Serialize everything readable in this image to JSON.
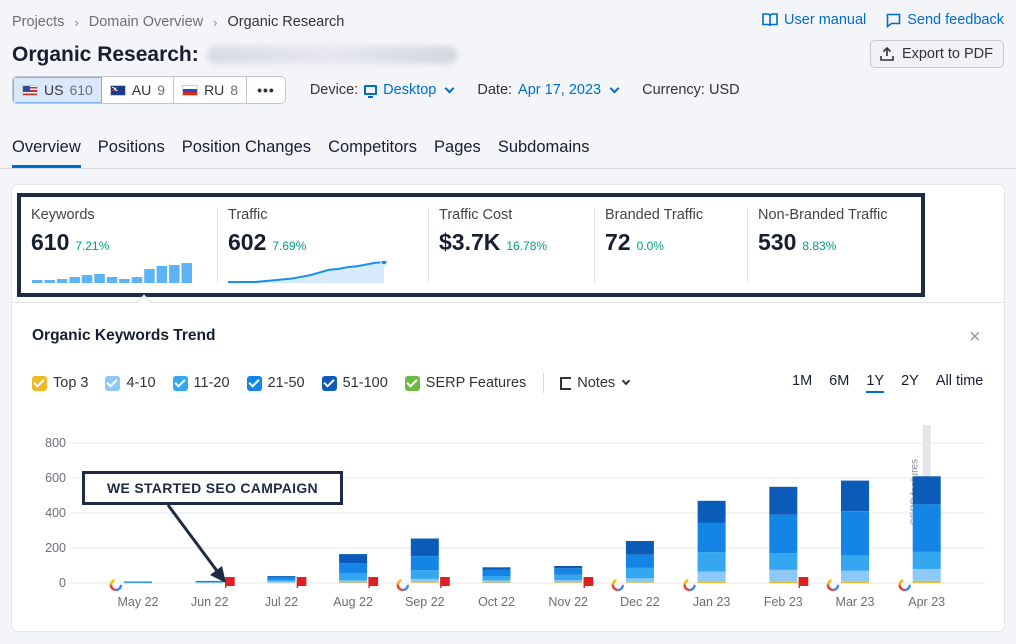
{
  "breadcrumb": {
    "items": [
      "Projects",
      "Domain Overview",
      "Organic Research"
    ]
  },
  "header_links": {
    "user_manual": "User manual",
    "send_feedback": "Send feedback"
  },
  "title": {
    "text": "Organic Research:"
  },
  "export": {
    "label": "Export to PDF"
  },
  "databases": [
    {
      "code": "US",
      "count": "610",
      "active": true
    },
    {
      "code": "AU",
      "count": "9",
      "active": false
    },
    {
      "code": "RU",
      "count": "8",
      "active": false
    }
  ],
  "more_label": "•••",
  "filters": {
    "device_label": "Device:",
    "device_value": "Desktop",
    "date_label": "Date:",
    "date_value": "Apr 17, 2023",
    "currency": "Currency: USD"
  },
  "tabs": [
    "Overview",
    "Positions",
    "Position Changes",
    "Competitors",
    "Pages",
    "Subdomains"
  ],
  "metrics": [
    {
      "label": "Keywords",
      "value": "610",
      "change": "7.21%"
    },
    {
      "label": "Traffic",
      "value": "602",
      "change": "7.69%"
    },
    {
      "label": "Traffic Cost",
      "value": "$3.7K",
      "change": "16.78%"
    },
    {
      "label": "Branded Traffic",
      "value": "72",
      "change": "0.0%"
    },
    {
      "label": "Non-Branded Traffic",
      "value": "530",
      "change": "8.83%"
    }
  ],
  "keywords_sparkline": [
    3,
    3,
    4,
    6,
    8,
    9,
    6,
    4,
    6,
    14,
    17,
    18,
    20
  ],
  "traffic_sparkline": [
    0,
    0,
    0,
    0,
    1,
    2,
    3,
    4,
    6,
    8,
    11,
    14,
    15,
    17,
    18,
    20,
    22,
    23
  ],
  "trend": {
    "title": "Organic Keywords Trend",
    "close": "×",
    "legend": [
      {
        "label": "Top 3",
        "color": "#f0b929"
      },
      {
        "label": "4-10",
        "color": "#8ec8f7"
      },
      {
        "label": "11-20",
        "color": "#35a7f0"
      },
      {
        "label": "21-50",
        "color": "#1484e6"
      },
      {
        "label": "51-100",
        "color": "#0b5cb8"
      },
      {
        "label": "SERP Features",
        "color": "#6bba44"
      }
    ],
    "notes": "Notes",
    "periods": [
      {
        "label": "1M",
        "active": false
      },
      {
        "label": "6M",
        "active": false
      },
      {
        "label": "1Y",
        "active": true
      },
      {
        "label": "2Y",
        "active": false
      },
      {
        "label": "All time",
        "active": false
      }
    ],
    "callout": "WE STARTED SEO CAMPAIGN",
    "serp_label": "SERP features"
  },
  "chart_data": {
    "type": "bar",
    "categories": [
      "May 22",
      "Jun 22",
      "Jul 22",
      "Aug 22",
      "Sep 22",
      "Oct 22",
      "Nov 22",
      "Dec 22",
      "Jan 23",
      "Feb 23",
      "Mar 23",
      "Apr 23"
    ],
    "ylim": [
      0,
      800
    ],
    "yticks": [
      0,
      200,
      400,
      600,
      800
    ],
    "stacked": true,
    "series": [
      {
        "name": "Top 3",
        "color": "#f0b929",
        "values": [
          0,
          0,
          2,
          3,
          4,
          3,
          3,
          4,
          6,
          10,
          10,
          12
        ]
      },
      {
        "name": "4-10",
        "color": "#8ec8f7",
        "values": [
          1,
          2,
          8,
          12,
          20,
          12,
          14,
          22,
          60,
          65,
          60,
          68
        ]
      },
      {
        "name": "11-20",
        "color": "#35a7f0",
        "values": [
          2,
          3,
          10,
          40,
          50,
          25,
          30,
          60,
          110,
          95,
          90,
          100
        ]
      },
      {
        "name": "21-50",
        "color": "#1484e6",
        "values": [
          3,
          4,
          15,
          55,
          80,
          35,
          35,
          75,
          170,
          220,
          250,
          270
        ]
      },
      {
        "name": "51-100",
        "color": "#0b5cb8",
        "values": [
          2,
          3,
          5,
          55,
          100,
          15,
          15,
          79,
          124,
          160,
          175,
          160
        ]
      }
    ],
    "grid": true,
    "google_markers": [
      "May 22",
      "Sep 22",
      "Dec 22",
      "Jan 23",
      "Mar 23",
      "Apr 23"
    ],
    "note_markers": [
      "Jun 22",
      "Jul 22",
      "Aug 22",
      "Sep 22",
      "Nov 22",
      "Feb 23"
    ]
  }
}
